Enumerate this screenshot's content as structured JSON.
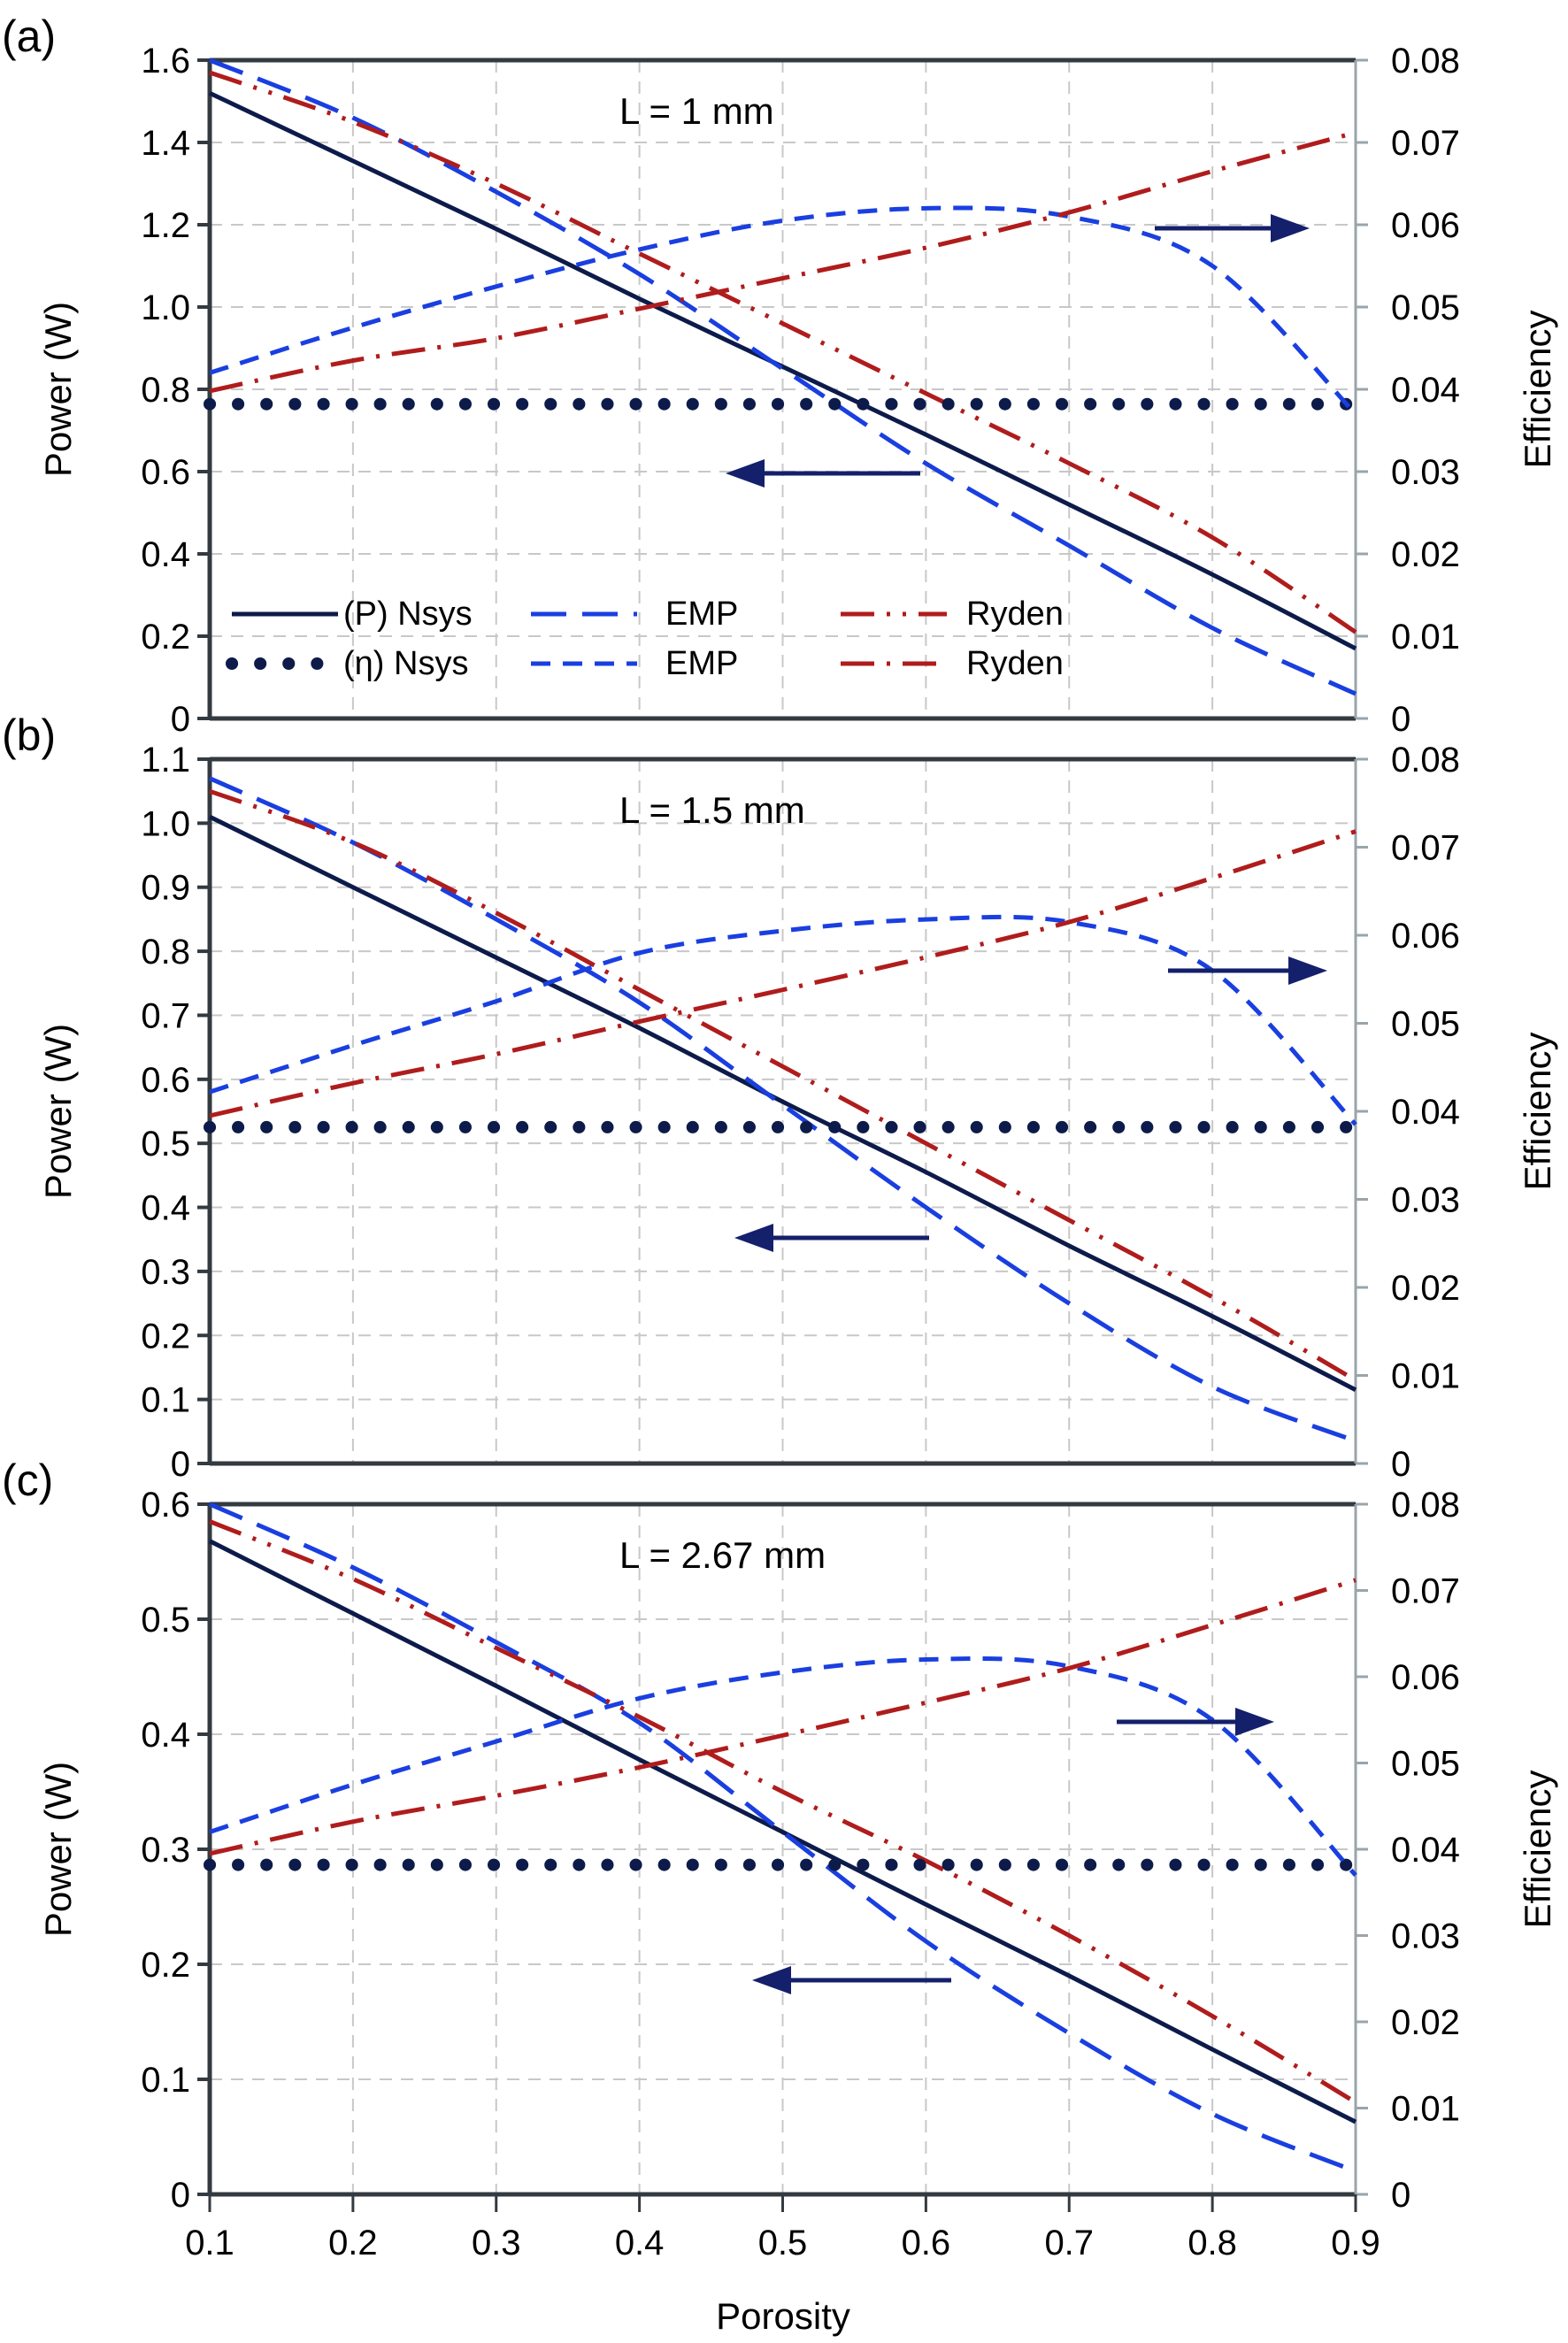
{
  "chart_data": {
    "type": "line",
    "xlabel": "Porosity",
    "x_ticks": [
      "0.1",
      "0.2",
      "0.3",
      "0.4",
      "0.5",
      "0.6",
      "0.7",
      "0.8",
      "0.9"
    ],
    "xlim": [
      0.1,
      0.9
    ],
    "grid": true,
    "colors": {
      "nsys": "#0d1b4a",
      "emp": "#1a3fe0",
      "ryden": "#b01c1c",
      "arrow": "#14206b",
      "grid": "#c8c8c8",
      "frame": "#333a40"
    },
    "legend": {
      "placement": "bottom-left of panel (a)",
      "entries": [
        {
          "label": "(P) Nsys",
          "series": "P_nsys"
        },
        {
          "label": "EMP",
          "series": "P_emp"
        },
        {
          "label": "Ryden",
          "series": "P_ryden"
        },
        {
          "label": "(η) Nsys",
          "series": "eta_nsys"
        },
        {
          "label": "EMP",
          "series": "eta_emp"
        },
        {
          "label": "Ryden",
          "series": "eta_ryden"
        }
      ]
    },
    "panels": [
      {
        "label": "(a)",
        "annotation": "L = 1 mm",
        "ylabel_left": "Power (W)",
        "ylabel_right": "Efficiency",
        "ylim_left": [
          0,
          1.6
        ],
        "ylim_right": [
          0,
          0.08
        ],
        "yticks_left": [
          "0",
          "0.2",
          "0.4",
          "0.6",
          "0.8",
          "1.0",
          "1.2",
          "1.4",
          "1.6"
        ],
        "yticks_right": [
          "0",
          "0.01",
          "0.02",
          "0.03",
          "0.04",
          "0.05",
          "0.06",
          "0.07",
          "0.08"
        ],
        "x": [
          0.1,
          0.2,
          0.3,
          0.4,
          0.5,
          0.6,
          0.7,
          0.8,
          0.9
        ],
        "series": [
          {
            "name": "(P) Nsys",
            "key": "P_nsys",
            "axis": "left",
            "values": [
              1.52,
              1.355,
              1.19,
              1.02,
              0.855,
              0.69,
              0.52,
              0.35,
              0.17
            ]
          },
          {
            "name": "(P) EMP",
            "key": "P_emp",
            "axis": "left",
            "values": [
              1.6,
              1.46,
              1.28,
              1.08,
              0.85,
              0.62,
              0.42,
              0.22,
              0.06
            ]
          },
          {
            "name": "(P) Ryden",
            "key": "P_ryden",
            "axis": "left",
            "values": [
              1.57,
              1.45,
              1.3,
              1.13,
              0.96,
              0.79,
              0.62,
              0.44,
              0.21
            ]
          },
          {
            "name": "(η) Nsys",
            "key": "eta_nsys",
            "axis": "right",
            "values": [
              0.0382,
              0.0382,
              0.0382,
              0.0382,
              0.0382,
              0.0382,
              0.0382,
              0.0382,
              0.0382
            ]
          },
          {
            "name": "(η) EMP",
            "key": "eta_emp",
            "axis": "right",
            "values": [
              0.042,
              0.0475,
              0.0525,
              0.057,
              0.0605,
              0.062,
              0.061,
              0.055,
              0.037
            ]
          },
          {
            "name": "(η) Ryden",
            "key": "eta_ryden",
            "axis": "right",
            "values": [
              0.0398,
              0.0435,
              0.0462,
              0.0498,
              0.0535,
              0.0572,
              0.0615,
              0.0665,
              0.0712
            ]
          }
        ]
      },
      {
        "label": "(b)",
        "annotation": "L = 1.5 mm",
        "ylabel_left": "Power (W)",
        "ylabel_right": "Efficiency",
        "ylim_left": [
          0,
          1.1
        ],
        "ylim_right": [
          0,
          0.08
        ],
        "yticks_left": [
          "0",
          "0.1",
          "0.2",
          "0.3",
          "0.4",
          "0.5",
          "0.6",
          "0.7",
          "0.8",
          "0.9",
          "1.0",
          "1.1"
        ],
        "yticks_right": [
          "0",
          "0.01",
          "0.02",
          "0.03",
          "0.04",
          "0.05",
          "0.06",
          "0.07",
          "0.08"
        ],
        "x": [
          0.1,
          0.2,
          0.3,
          0.4,
          0.5,
          0.6,
          0.7,
          0.8,
          0.9
        ],
        "series": [
          {
            "name": "(P) Nsys",
            "key": "P_nsys",
            "axis": "left",
            "values": [
              1.01,
              0.9,
              0.79,
              0.68,
              0.565,
              0.455,
              0.34,
              0.23,
              0.115
            ]
          },
          {
            "name": "(P) EMP",
            "key": "P_emp",
            "axis": "left",
            "values": [
              1.07,
              0.97,
              0.85,
              0.72,
              0.56,
              0.4,
              0.25,
              0.12,
              0.035
            ]
          },
          {
            "name": "(P) Ryden",
            "key": "P_ryden",
            "axis": "left",
            "values": [
              1.05,
              0.97,
              0.86,
              0.74,
              0.62,
              0.5,
              0.38,
              0.26,
              0.13
            ]
          },
          {
            "name": "(η) Nsys",
            "key": "eta_nsys",
            "axis": "right",
            "values": [
              0.0382,
              0.0382,
              0.0382,
              0.0382,
              0.0382,
              0.0382,
              0.0382,
              0.0382,
              0.0382
            ]
          },
          {
            "name": "(η) EMP",
            "key": "eta_emp",
            "axis": "right",
            "values": [
              0.0422,
              0.0475,
              0.0525,
              0.058,
              0.0605,
              0.0618,
              0.0615,
              0.056,
              0.0385
            ]
          },
          {
            "name": "(η) Ryden",
            "key": "eta_ryden",
            "axis": "right",
            "values": [
              0.0395,
              0.0432,
              0.0465,
              0.0502,
              0.0538,
              0.0575,
              0.0615,
              0.0665,
              0.0718
            ]
          }
        ]
      },
      {
        "label": "(c)",
        "annotation": "L = 2.67 mm",
        "ylabel_left": "Power (W)",
        "ylabel_right": "Efficiency",
        "ylim_left": [
          0,
          0.6
        ],
        "ylim_right": [
          0,
          0.08
        ],
        "yticks_left": [
          "0",
          "0.1",
          "0.2",
          "0.3",
          "0.4",
          "0.5",
          "0.6"
        ],
        "yticks_right": [
          "0",
          "0.01",
          "0.02",
          "0.03",
          "0.04",
          "0.05",
          "0.06",
          "0.07",
          "0.08"
        ],
        "x": [
          0.1,
          0.2,
          0.3,
          0.4,
          0.5,
          0.6,
          0.7,
          0.8,
          0.9
        ],
        "series": [
          {
            "name": "(P) Nsys",
            "key": "P_nsys",
            "axis": "left",
            "values": [
              0.568,
              0.505,
              0.442,
              0.378,
              0.315,
              0.252,
              0.19,
              0.126,
              0.063
            ]
          },
          {
            "name": "(P) EMP",
            "key": "P_emp",
            "axis": "left",
            "values": [
              0.6,
              0.545,
              0.48,
              0.41,
              0.315,
              0.22,
              0.14,
              0.07,
              0.02
            ]
          },
          {
            "name": "(P) Ryden",
            "key": "P_ryden",
            "axis": "left",
            "values": [
              0.585,
              0.535,
              0.475,
              0.415,
              0.35,
              0.29,
              0.225,
              0.155,
              0.08
            ]
          },
          {
            "name": "(η) Nsys",
            "key": "eta_nsys",
            "axis": "right",
            "values": [
              0.0382,
              0.0382,
              0.0382,
              0.0382,
              0.0382,
              0.0382,
              0.0382,
              0.0382,
              0.0382
            ]
          },
          {
            "name": "(η) EMP",
            "key": "eta_emp",
            "axis": "right",
            "values": [
              0.042,
              0.0475,
              0.0525,
              0.0575,
              0.0605,
              0.062,
              0.0612,
              0.055,
              0.037
            ]
          },
          {
            "name": "(η) Ryden",
            "key": "eta_ryden",
            "axis": "right",
            "values": [
              0.0395,
              0.0432,
              0.0462,
              0.0495,
              0.0532,
              0.057,
              0.061,
              0.066,
              0.0712
            ]
          }
        ]
      }
    ]
  }
}
